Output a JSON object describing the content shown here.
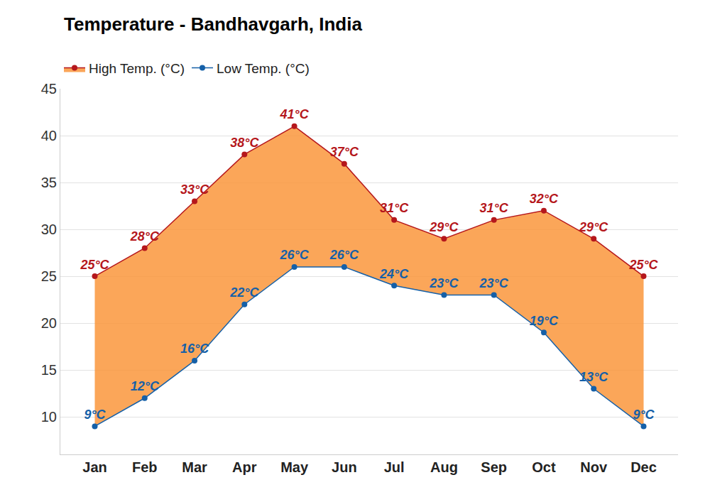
{
  "chart_data": {
    "type": "line",
    "title": "Temperature - Bandhavgarh, India",
    "categories": [
      "Jan",
      "Feb",
      "Mar",
      "Apr",
      "May",
      "Jun",
      "Jul",
      "Aug",
      "Sep",
      "Oct",
      "Nov",
      "Dec"
    ],
    "series": [
      {
        "name": "Low Temp. (°C)",
        "color": "#1560a8",
        "values": [
          9,
          12,
          16,
          22,
          26,
          26,
          24,
          23,
          23,
          19,
          13,
          9
        ],
        "value_labels": [
          "9°C",
          "12°C",
          "16°C",
          "22°C",
          "26°C",
          "26°C",
          "24°C",
          "23°C",
          "23°C",
          "19°C",
          "13°C",
          "9°C"
        ]
      },
      {
        "name": "High Temp. (°C)",
        "color": "#b5171c",
        "values": [
          25,
          28,
          33,
          38,
          41,
          37,
          31,
          29,
          31,
          32,
          29,
          25
        ],
        "value_labels": [
          "25°C",
          "28°C",
          "33°C",
          "38°C",
          "41°C",
          "37°C",
          "31°C",
          "29°C",
          "31°C",
          "32°C",
          "29°C",
          "25°C"
        ]
      }
    ],
    "ylim": [
      6,
      45
    ],
    "yticks": [
      10,
      15,
      20,
      25,
      30,
      35,
      40,
      45
    ],
    "grid": true,
    "legend": "top left",
    "data_labels": true,
    "marker": "circle"
  }
}
